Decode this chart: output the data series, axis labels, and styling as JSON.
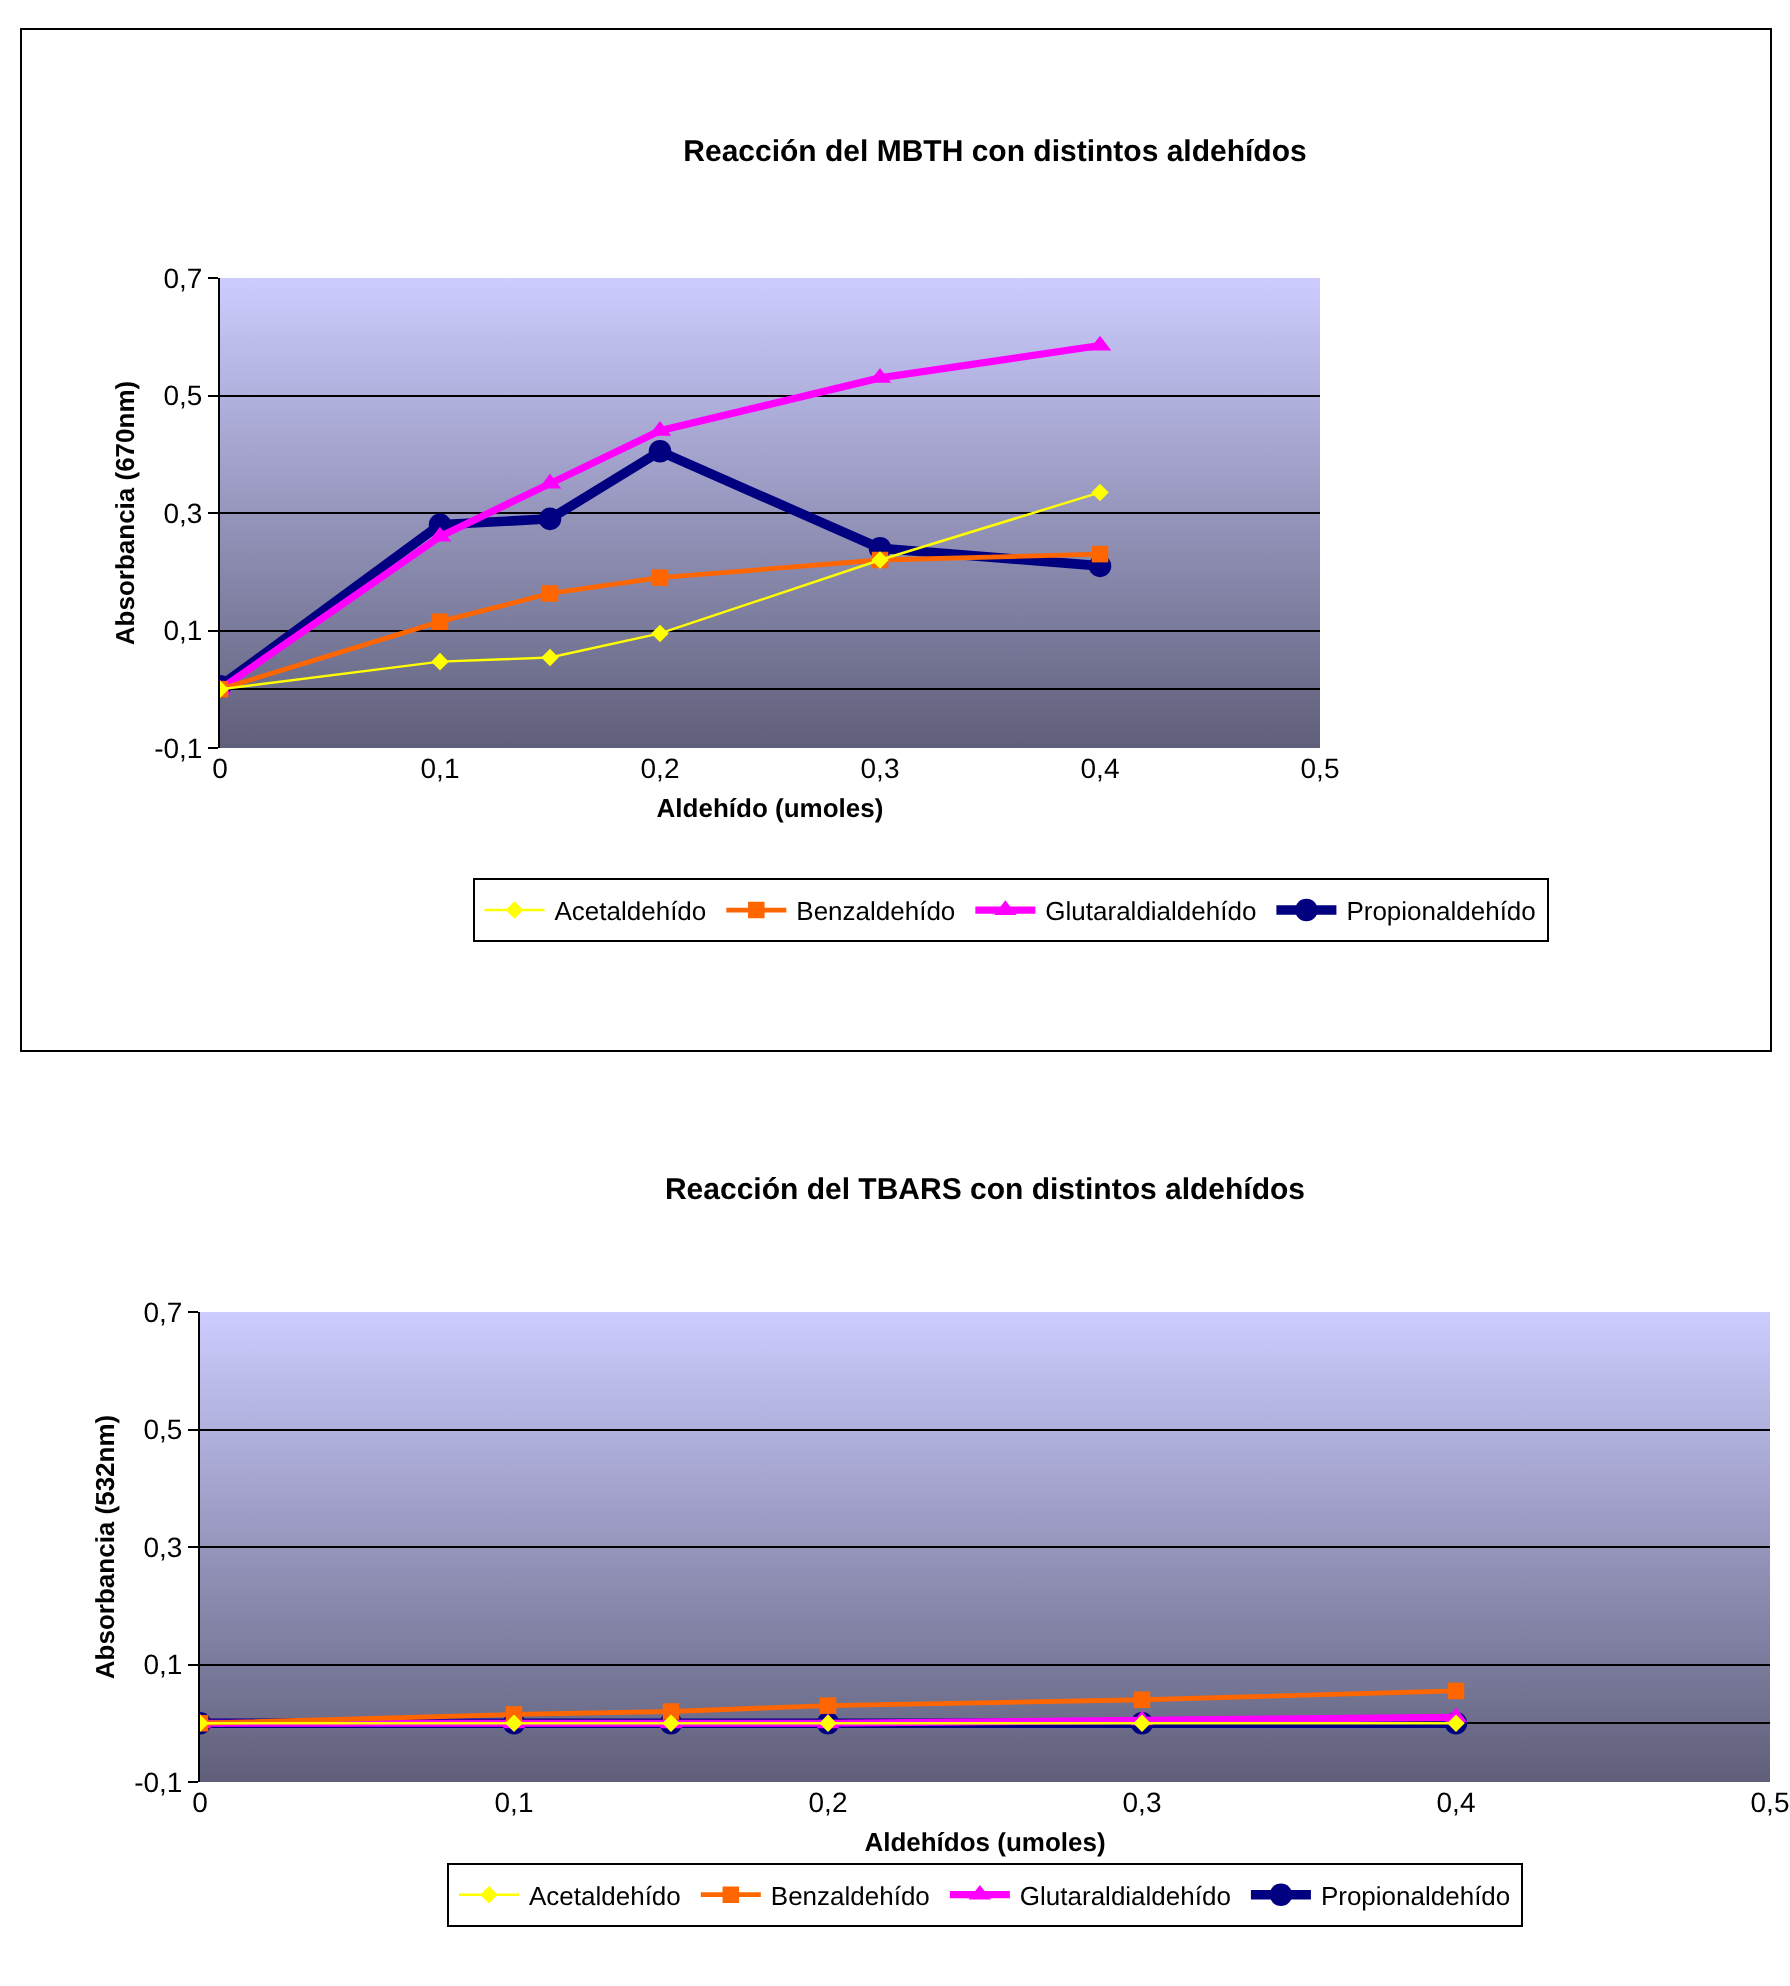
{
  "chart_data": [
    {
      "type": "line",
      "title": "Reacción del MBTH con distintos aldehídos",
      "xlabel": "Aldehído (umoles)",
      "ylabel": "Absorbancia (670nm)",
      "x": [
        0,
        0.1,
        0.15,
        0.2,
        0.3,
        0.4
      ],
      "series": [
        {
          "name": "Acetaldehído",
          "color": "#ffff00",
          "marker": "diamond",
          "values": [
            0,
            0.047,
            0.054,
            0.095,
            0.22,
            0.335
          ]
        },
        {
          "name": "Benzaldehído",
          "color": "#ff6600",
          "marker": "square",
          "values": [
            0,
            0.115,
            0.163,
            0.19,
            0.22,
            0.23
          ]
        },
        {
          "name": "Glutaraldialdehído",
          "color": "#ff00ff",
          "marker": "triangle",
          "values": [
            0,
            0.26,
            0.35,
            0.44,
            0.53,
            0.585
          ]
        },
        {
          "name": "Propionaldehído",
          "color": "#000080",
          "marker": "circle",
          "values": [
            0.005,
            0.28,
            0.29,
            0.405,
            0.24,
            0.21
          ]
        }
      ],
      "xlim": [
        0,
        0.5
      ],
      "xticks": [
        0,
        {
          "value": 0.1,
          "label": "0,1"
        },
        {
          "value": 0.2,
          "label": "0,2"
        },
        {
          "value": 0.3,
          "label": "0,3"
        },
        {
          "value": 0.4,
          "label": "0,4"
        },
        {
          "value": 0.5,
          "label": "0,5"
        }
      ],
      "ylim": [
        -0.1,
        0.7
      ],
      "yticks": [
        {
          "value": -0.1,
          "label": "-0,1"
        },
        {
          "value": 0.1,
          "label": "0,1"
        },
        {
          "value": 0.3,
          "label": "0,3"
        },
        {
          "value": 0.5,
          "label": "0,5"
        },
        {
          "value": 0.7,
          "label": "0,7"
        }
      ],
      "grid": "y",
      "legend": "bottom",
      "line_style": "solid"
    },
    {
      "type": "line",
      "title": "Reacción del TBARS con distintos aldehídos",
      "xlabel": "Aldehídos (umoles)",
      "ylabel": "Absorbancia (532nm)",
      "x": [
        0,
        0.1,
        0.15,
        0.2,
        0.3,
        0.4
      ],
      "series": [
        {
          "name": "Acetaldehído",
          "color": "#ffff00",
          "marker": "diamond",
          "values": [
            0,
            0,
            0,
            0,
            0,
            0
          ]
        },
        {
          "name": "Benzaldehído",
          "color": "#ff6600",
          "marker": "square",
          "values": [
            0,
            0.015,
            0.02,
            0.03,
            0.04,
            0.055
          ]
        },
        {
          "name": "Glutaraldialdehído",
          "color": "#ff00ff",
          "marker": "triangle",
          "values": [
            0,
            0,
            0,
            0,
            0.005,
            0.01
          ]
        },
        {
          "name": "Propionaldehído",
          "color": "#000080",
          "marker": "circle",
          "values": [
            0,
            0,
            0,
            0,
            0,
            0
          ]
        }
      ],
      "xlim": [
        0,
        0.5
      ],
      "xticks": [
        0,
        {
          "value": 0.1,
          "label": "0,1"
        },
        {
          "value": 0.2,
          "label": "0,2"
        },
        {
          "value": 0.3,
          "label": "0,3"
        },
        {
          "value": 0.4,
          "label": "0,4"
        },
        {
          "value": 0.5,
          "label": "0,5"
        }
      ],
      "ylim": [
        -0.1,
        0.7
      ],
      "yticks": [
        {
          "value": -0.1,
          "label": "-0,1"
        },
        {
          "value": 0.1,
          "label": "0,1"
        },
        {
          "value": 0.3,
          "label": "0,3"
        },
        {
          "value": 0.5,
          "label": "0,5"
        },
        {
          "value": 0.7,
          "label": "0,7"
        }
      ],
      "grid": "y",
      "legend": "bottom",
      "line_style": "solid"
    }
  ]
}
